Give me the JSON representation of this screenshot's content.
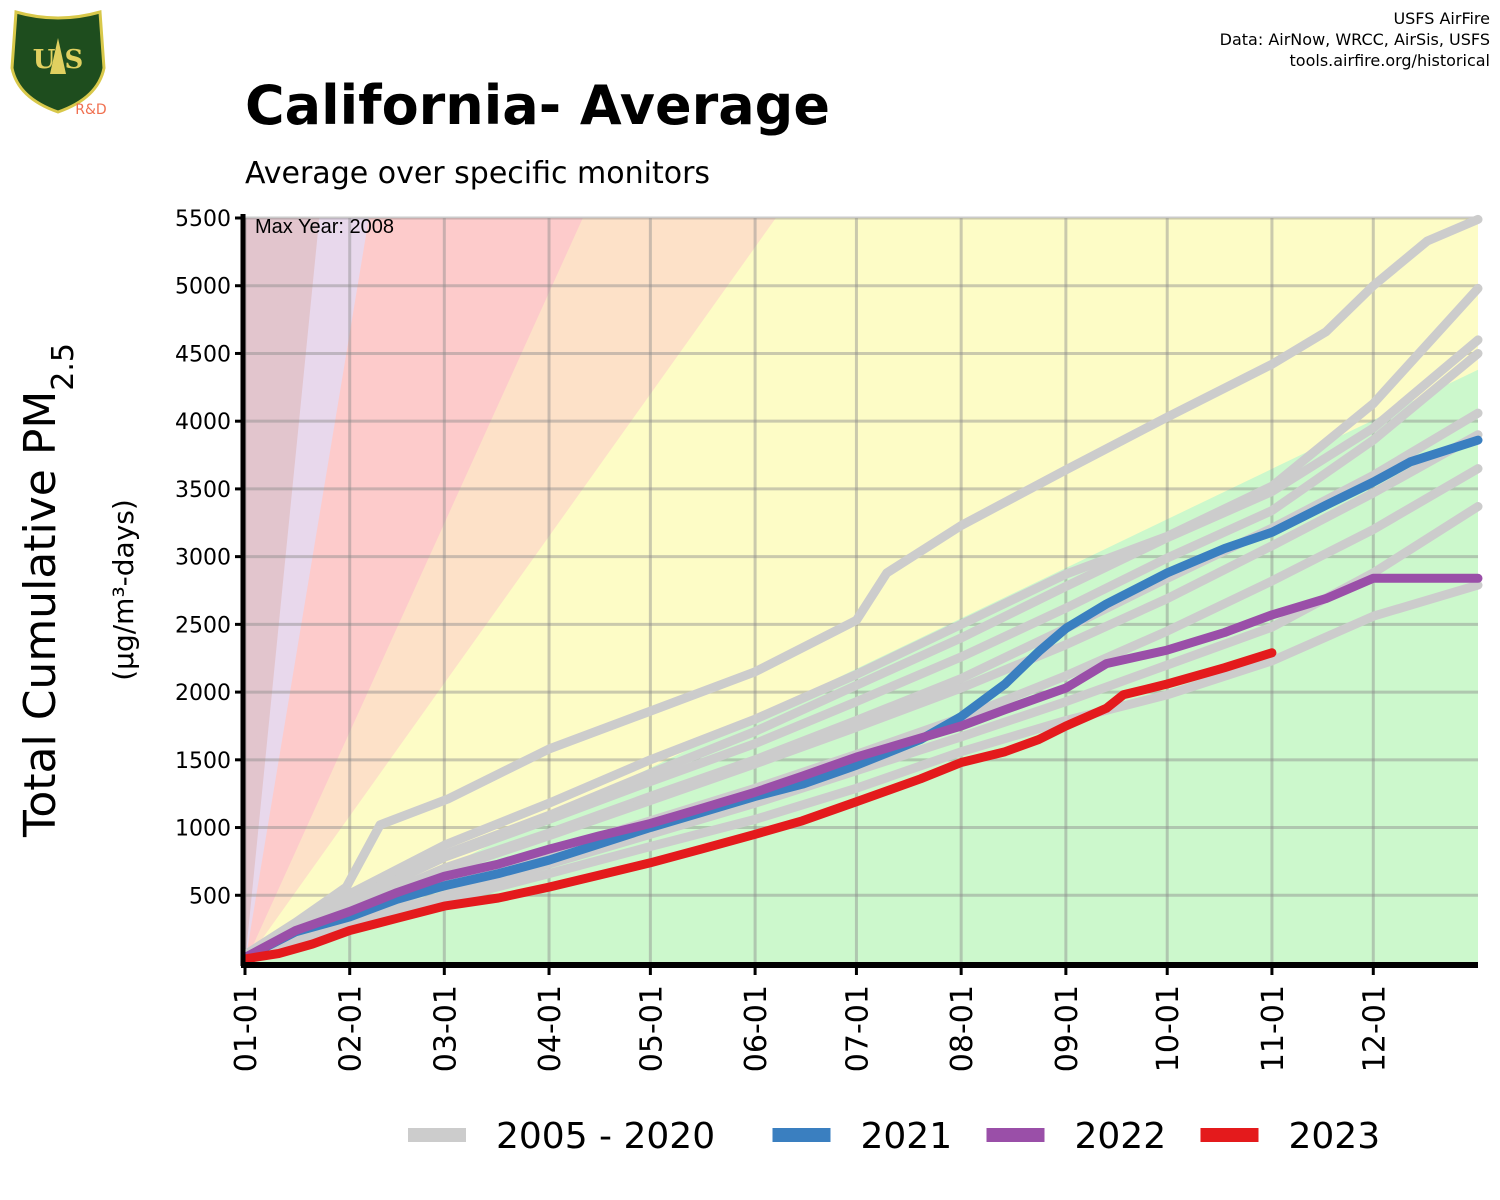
{
  "header": {
    "title": "California- Average",
    "subtitle": "Average over specific monitors",
    "credits": [
      "USFS AirFire",
      "Data: AirNow, WRCC, AirSis, USFS",
      "tools.airfire.org/historical"
    ],
    "logo_text": "R&D"
  },
  "colors": {
    "green": "#ccf8cc",
    "yellow": "#fdfcc6",
    "orange": "#fde1c8",
    "red": "#fdcbcb",
    "purple": "#e8d8ec",
    "maroon": "#e2c5cd",
    "historical": "#cccccc",
    "y2021": "#3a7fc0",
    "y2022": "#9a4fa8",
    "y2023": "#e41a1c"
  },
  "chart_data": {
    "type": "line",
    "ylabel_main": "Total Cumulative PM",
    "ylabel_sub": "2.5",
    "ylabel_units": "(µg/m³-days)",
    "annotation": "Max Year: 2008",
    "x_ticks": [
      "01-01",
      "02-01",
      "03-01",
      "04-01",
      "05-01",
      "06-01",
      "07-01",
      "08-01",
      "09-01",
      "10-01",
      "11-01",
      "12-01"
    ],
    "x_tick_days": [
      0,
      31,
      59,
      90,
      120,
      151,
      181,
      212,
      243,
      273,
      304,
      334
    ],
    "xlim": [
      0,
      365
    ],
    "y_ticks": [
      500,
      1000,
      1500,
      2000,
      2500,
      3000,
      3500,
      4000,
      4500,
      5000,
      5500
    ],
    "ylim": [
      0,
      5500
    ],
    "aqi_slopes_per_day": [
      12,
      35,
      55,
      150,
      250,
      500
    ],
    "historical_series": [
      {
        "name": "2008 (max)",
        "x": [
          0,
          15,
          30,
          40,
          60,
          90,
          120,
          151,
          181,
          190,
          212,
          243,
          273,
          304,
          320,
          334,
          350,
          365
        ],
        "y": [
          60,
          300,
          560,
          1020,
          1210,
          1580,
          1860,
          2150,
          2530,
          2880,
          3230,
          3640,
          4030,
          4420,
          4660,
          5000,
          5330,
          5490
        ]
      },
      {
        "name": "2005 - 2020",
        "x": [
          0,
          31,
          59,
          90,
          120,
          151,
          181,
          212,
          243,
          273,
          304,
          334,
          365
        ],
        "y": [
          55,
          510,
          870,
          1180,
          1500,
          1800,
          2130,
          2500,
          2870,
          3150,
          3520,
          4130,
          4980
        ]
      },
      {
        "name": "2005 - 2020",
        "x": [
          0,
          31,
          59,
          90,
          120,
          151,
          181,
          212,
          243,
          273,
          304,
          334,
          365
        ],
        "y": [
          45,
          460,
          800,
          1090,
          1400,
          1710,
          2050,
          2400,
          2780,
          3140,
          3480,
          3950,
          4600
        ]
      },
      {
        "name": "2005 - 2020",
        "x": [
          0,
          31,
          59,
          90,
          120,
          151,
          181,
          212,
          243,
          273,
          304,
          334,
          365
        ],
        "y": [
          45,
          450,
          780,
          1060,
          1340,
          1620,
          1930,
          2260,
          2620,
          2990,
          3340,
          3860,
          4500
        ]
      },
      {
        "name": "2005 - 2020",
        "x": [
          0,
          31,
          59,
          90,
          120,
          151,
          181,
          212,
          243,
          273,
          304,
          334,
          365
        ],
        "y": [
          40,
          400,
          700,
          960,
          1230,
          1500,
          1790,
          2100,
          2470,
          2840,
          3210,
          3600,
          4060
        ]
      },
      {
        "name": "2005 - 2020",
        "x": [
          0,
          31,
          59,
          90,
          120,
          151,
          181,
          212,
          243,
          273,
          304,
          334,
          365
        ],
        "y": [
          40,
          390,
          680,
          940,
          1200,
          1470,
          1740,
          2030,
          2350,
          2690,
          3080,
          3470,
          3900
        ]
      },
      {
        "name": "2005 - 2020",
        "x": [
          0,
          31,
          59,
          90,
          120,
          151,
          181,
          212,
          243,
          273,
          304,
          334,
          365
        ],
        "y": [
          35,
          330,
          580,
          820,
          1050,
          1290,
          1540,
          1810,
          2120,
          2450,
          2820,
          3200,
          3650
        ]
      },
      {
        "name": "2005 - 2020",
        "x": [
          0,
          31,
          59,
          90,
          120,
          151,
          181,
          212,
          243,
          273,
          304,
          334,
          365
        ],
        "y": [
          30,
          280,
          500,
          730,
          950,
          1180,
          1420,
          1670,
          1930,
          2200,
          2480,
          2880,
          3370
        ]
      },
      {
        "name": "2005 - 2020",
        "x": [
          0,
          31,
          59,
          90,
          120,
          151,
          181,
          212,
          243,
          273,
          304,
          334,
          365
        ],
        "y": [
          30,
          260,
          460,
          660,
          860,
          1060,
          1290,
          1560,
          1790,
          1980,
          2230,
          2560,
          2790
        ]
      }
    ],
    "series": [
      {
        "name": "2021",
        "x": [
          0,
          15,
          31,
          45,
          59,
          75,
          90,
          105,
          120,
          135,
          151,
          165,
          181,
          200,
          212,
          225,
          235,
          243,
          255,
          273,
          290,
          304,
          320,
          334,
          345,
          365
        ],
        "y": [
          40,
          230,
          340,
          470,
          570,
          660,
          760,
          880,
          1000,
          1110,
          1230,
          1320,
          1460,
          1650,
          1820,
          2060,
          2300,
          2470,
          2650,
          2880,
          3060,
          3180,
          3380,
          3550,
          3700,
          3860
        ]
      },
      {
        "name": "2022",
        "x": [
          0,
          15,
          31,
          45,
          59,
          75,
          90,
          105,
          120,
          135,
          151,
          165,
          181,
          200,
          212,
          225,
          243,
          255,
          273,
          290,
          304,
          320,
          334,
          345,
          365
        ],
        "y": [
          40,
          240,
          380,
          520,
          640,
          730,
          840,
          940,
          1030,
          1140,
          1260,
          1380,
          1520,
          1660,
          1750,
          1870,
          2030,
          2210,
          2310,
          2440,
          2570,
          2690,
          2840,
          2840,
          2840
        ]
      },
      {
        "name": "2023",
        "x": [
          0,
          10,
          20,
          31,
          45,
          59,
          75,
          90,
          105,
          120,
          135,
          151,
          165,
          181,
          200,
          212,
          225,
          235,
          243,
          255,
          260,
          273,
          290,
          304
        ],
        "y": [
          30,
          70,
          140,
          240,
          330,
          420,
          480,
          560,
          650,
          740,
          840,
          950,
          1050,
          1190,
          1360,
          1480,
          1560,
          1650,
          1750,
          1880,
          1980,
          2060,
          2180,
          2290
        ]
      }
    ],
    "legend": [
      {
        "label": "2005 - 2020",
        "color": "#cccccc"
      },
      {
        "label": "2021",
        "color": "#3a7fc0"
      },
      {
        "label": "2022",
        "color": "#9a4fa8"
      },
      {
        "label": "2023",
        "color": "#e41a1c"
      }
    ]
  }
}
